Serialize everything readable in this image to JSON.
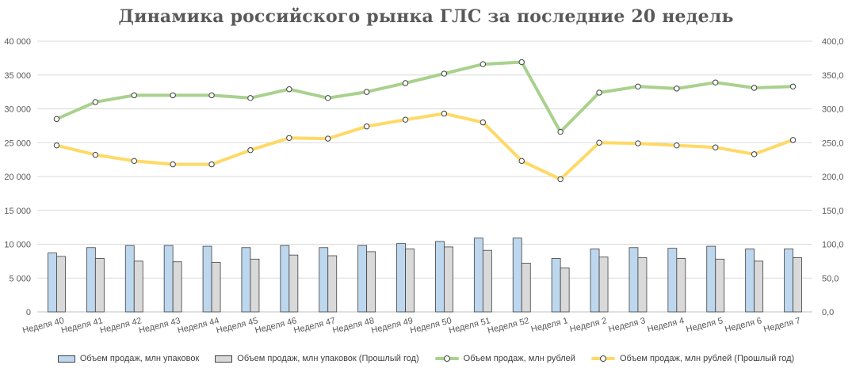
{
  "chart_data": {
    "type": "bar+line",
    "title": "Динамика российского рынка ГЛС за последние 20 недель",
    "categories": [
      "Неделя 40",
      "Неделя 41",
      "Неделя 42",
      "Неделя 43",
      "Неделя 44",
      "Неделя 45",
      "Неделя 46",
      "Неделя 47",
      "Неделя 48",
      "Неделя 49",
      "Неделя 50",
      "Неделя 51",
      "Неделя 52",
      "Неделя 1",
      "Неделя 2",
      "Неделя 3",
      "Неделя 4",
      "Неделя 5",
      "Неделя 6",
      "Неделя 7"
    ],
    "y_left": {
      "ylim": [
        0,
        40000
      ],
      "ticks": [
        0,
        5000,
        10000,
        15000,
        20000,
        25000,
        30000,
        35000,
        40000
      ],
      "tick_labels": [
        "0",
        "5 000",
        "10 000",
        "15 000",
        "20 000",
        "25 000",
        "30 000",
        "35 000",
        "40 000"
      ]
    },
    "y_right": {
      "ylim": [
        0,
        400
      ],
      "ticks": [
        0,
        50,
        100,
        150,
        200,
        250,
        300,
        350,
        400
      ],
      "tick_labels": [
        "0,0",
        "50,0",
        "100,0",
        "150,0",
        "200,0",
        "250,0",
        "300,0",
        "350,0",
        "400,0"
      ]
    },
    "grid": true,
    "legend_position": "bottom",
    "series": [
      {
        "name": "Объем продаж, млн упаковок",
        "type": "bar",
        "axis": "left",
        "color": "#bdd7ee",
        "values": [
          8700,
          9500,
          9800,
          9800,
          9700,
          9500,
          9800,
          9500,
          9800,
          10100,
          10400,
          10900,
          10900,
          7900,
          9300,
          9500,
          9400,
          9700,
          9300,
          9300
        ]
      },
      {
        "name": "Объем продаж, млн упаковок (Прошлый год)",
        "type": "bar",
        "axis": "left",
        "color": "#d9d9d9",
        "values": [
          8200,
          7900,
          7500,
          7400,
          7300,
          7800,
          8400,
          8300,
          8900,
          9300,
          9600,
          9100,
          7200,
          6500,
          8100,
          8000,
          7900,
          7800,
          7500,
          8000
        ]
      },
      {
        "name": "Объем продаж, млн рублей",
        "type": "line",
        "axis": "right",
        "color": "#a9d18e",
        "values": [
          285,
          310,
          320,
          320,
          320,
          316,
          329,
          316,
          325,
          338,
          352,
          366,
          369,
          266,
          324,
          333,
          330,
          339,
          331,
          333
        ]
      },
      {
        "name": "Объем продаж, млн рублей (Прошлый год)",
        "type": "line",
        "axis": "right",
        "color": "#ffd966",
        "values": [
          246,
          232,
          223,
          218,
          218,
          239,
          257,
          256,
          274,
          284,
          293,
          280,
          223,
          196,
          250,
          249,
          246,
          243,
          233,
          254
        ]
      }
    ]
  }
}
